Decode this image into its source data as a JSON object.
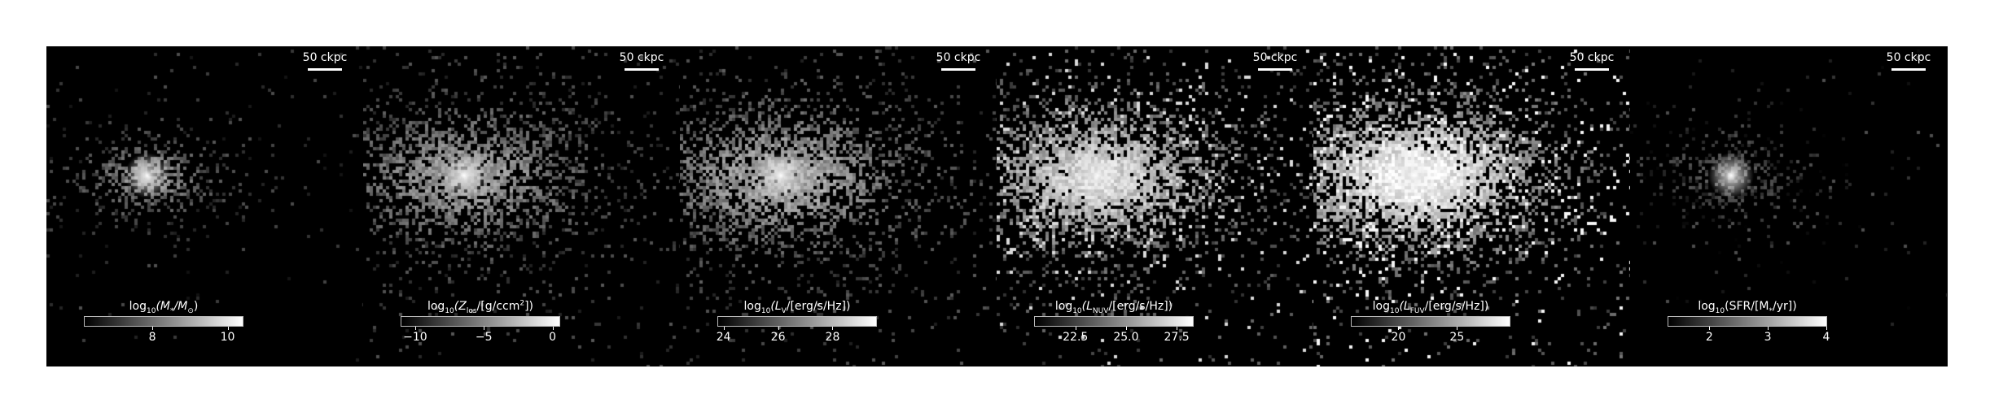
{
  "figure": {
    "panels": [
      {
        "id": "stellar-mass",
        "scalebar": "50 ckpc",
        "colorbar": {
          "label_parts": [
            "log",
            "10",
            "(M",
            "*",
            "/M",
            "⊙",
            ")"
          ],
          "ticks": [
            {
              "label": "8",
              "value": 8
            },
            {
              "label": "10",
              "value": 10
            }
          ],
          "range": [
            6.2,
            10.4
          ]
        },
        "brightness": 0.55,
        "spread": 0.55,
        "fill": 0.55,
        "core": 1.0
      },
      {
        "id": "metallicity-los",
        "scalebar": "50 ckpc",
        "colorbar": {
          "label_parts": [
            "log",
            "10",
            "(Z",
            "los",
            "/[g/ccm",
            "2",
            "])"
          ],
          "ticks": [
            {
              "label": "−10",
              "value": -10
            },
            {
              "label": "−5",
              "value": -5
            },
            {
              "label": "0",
              "value": 0
            }
          ],
          "range": [
            -11,
            0.5
          ]
        },
        "brightness": 0.62,
        "spread": 1.0,
        "fill": 0.7,
        "core": 1.0
      },
      {
        "id": "luminosity-v",
        "scalebar": "50 ckpc",
        "colorbar": {
          "label_parts": [
            "log",
            "10",
            "(L",
            "V",
            "/[erg/s/Hz])"
          ],
          "ticks": [
            {
              "label": "24",
              "value": 24
            },
            {
              "label": "26",
              "value": 26
            },
            {
              "label": "28",
              "value": 28
            }
          ],
          "range": [
            23.8,
            29.6
          ]
        },
        "brightness": 0.68,
        "spread": 1.05,
        "fill": 0.72,
        "core": 1.0
      },
      {
        "id": "luminosity-nuv",
        "scalebar": "50 ckpc",
        "colorbar": {
          "label_parts": [
            "log",
            "10",
            "(L",
            "NUV",
            "/[erg/s/Hz])"
          ],
          "ticks": [
            {
              "label": "22.5",
              "value": 22.5
            },
            {
              "label": "25.0",
              "value": 25.0
            },
            {
              "label": "27.5",
              "value": 27.5
            }
          ],
          "range": [
            20.5,
            28.3
          ]
        },
        "brightness": 0.85,
        "spread": 1.15,
        "fill": 0.8,
        "core": 0.9
      },
      {
        "id": "luminosity-fuv",
        "scalebar": "50 ckpc",
        "colorbar": {
          "label_parts": [
            "log",
            "10",
            "(L",
            "FUV",
            "/[erg/s/Hz])"
          ],
          "ticks": [
            {
              "label": "20",
              "value": 20
            },
            {
              "label": "25",
              "value": 25
            }
          ],
          "range": [
            16,
            29.5
          ]
        },
        "brightness": 0.96,
        "spread": 1.2,
        "fill": 0.85,
        "core": 0.9
      },
      {
        "id": "sfr",
        "scalebar": "50 ckpc",
        "colorbar": {
          "label_parts": [
            "log",
            "10",
            "(SFR/[M",
            "*",
            "/yr])"
          ],
          "ticks": [
            {
              "label": "2",
              "value": 2
            },
            {
              "label": "3",
              "value": 3
            },
            {
              "label": "4",
              "value": 4
            }
          ],
          "range": [
            1.3,
            4.0
          ]
        },
        "brightness": 0.3,
        "spread": 0.6,
        "fill": 0.4,
        "core": 1.0
      }
    ]
  }
}
